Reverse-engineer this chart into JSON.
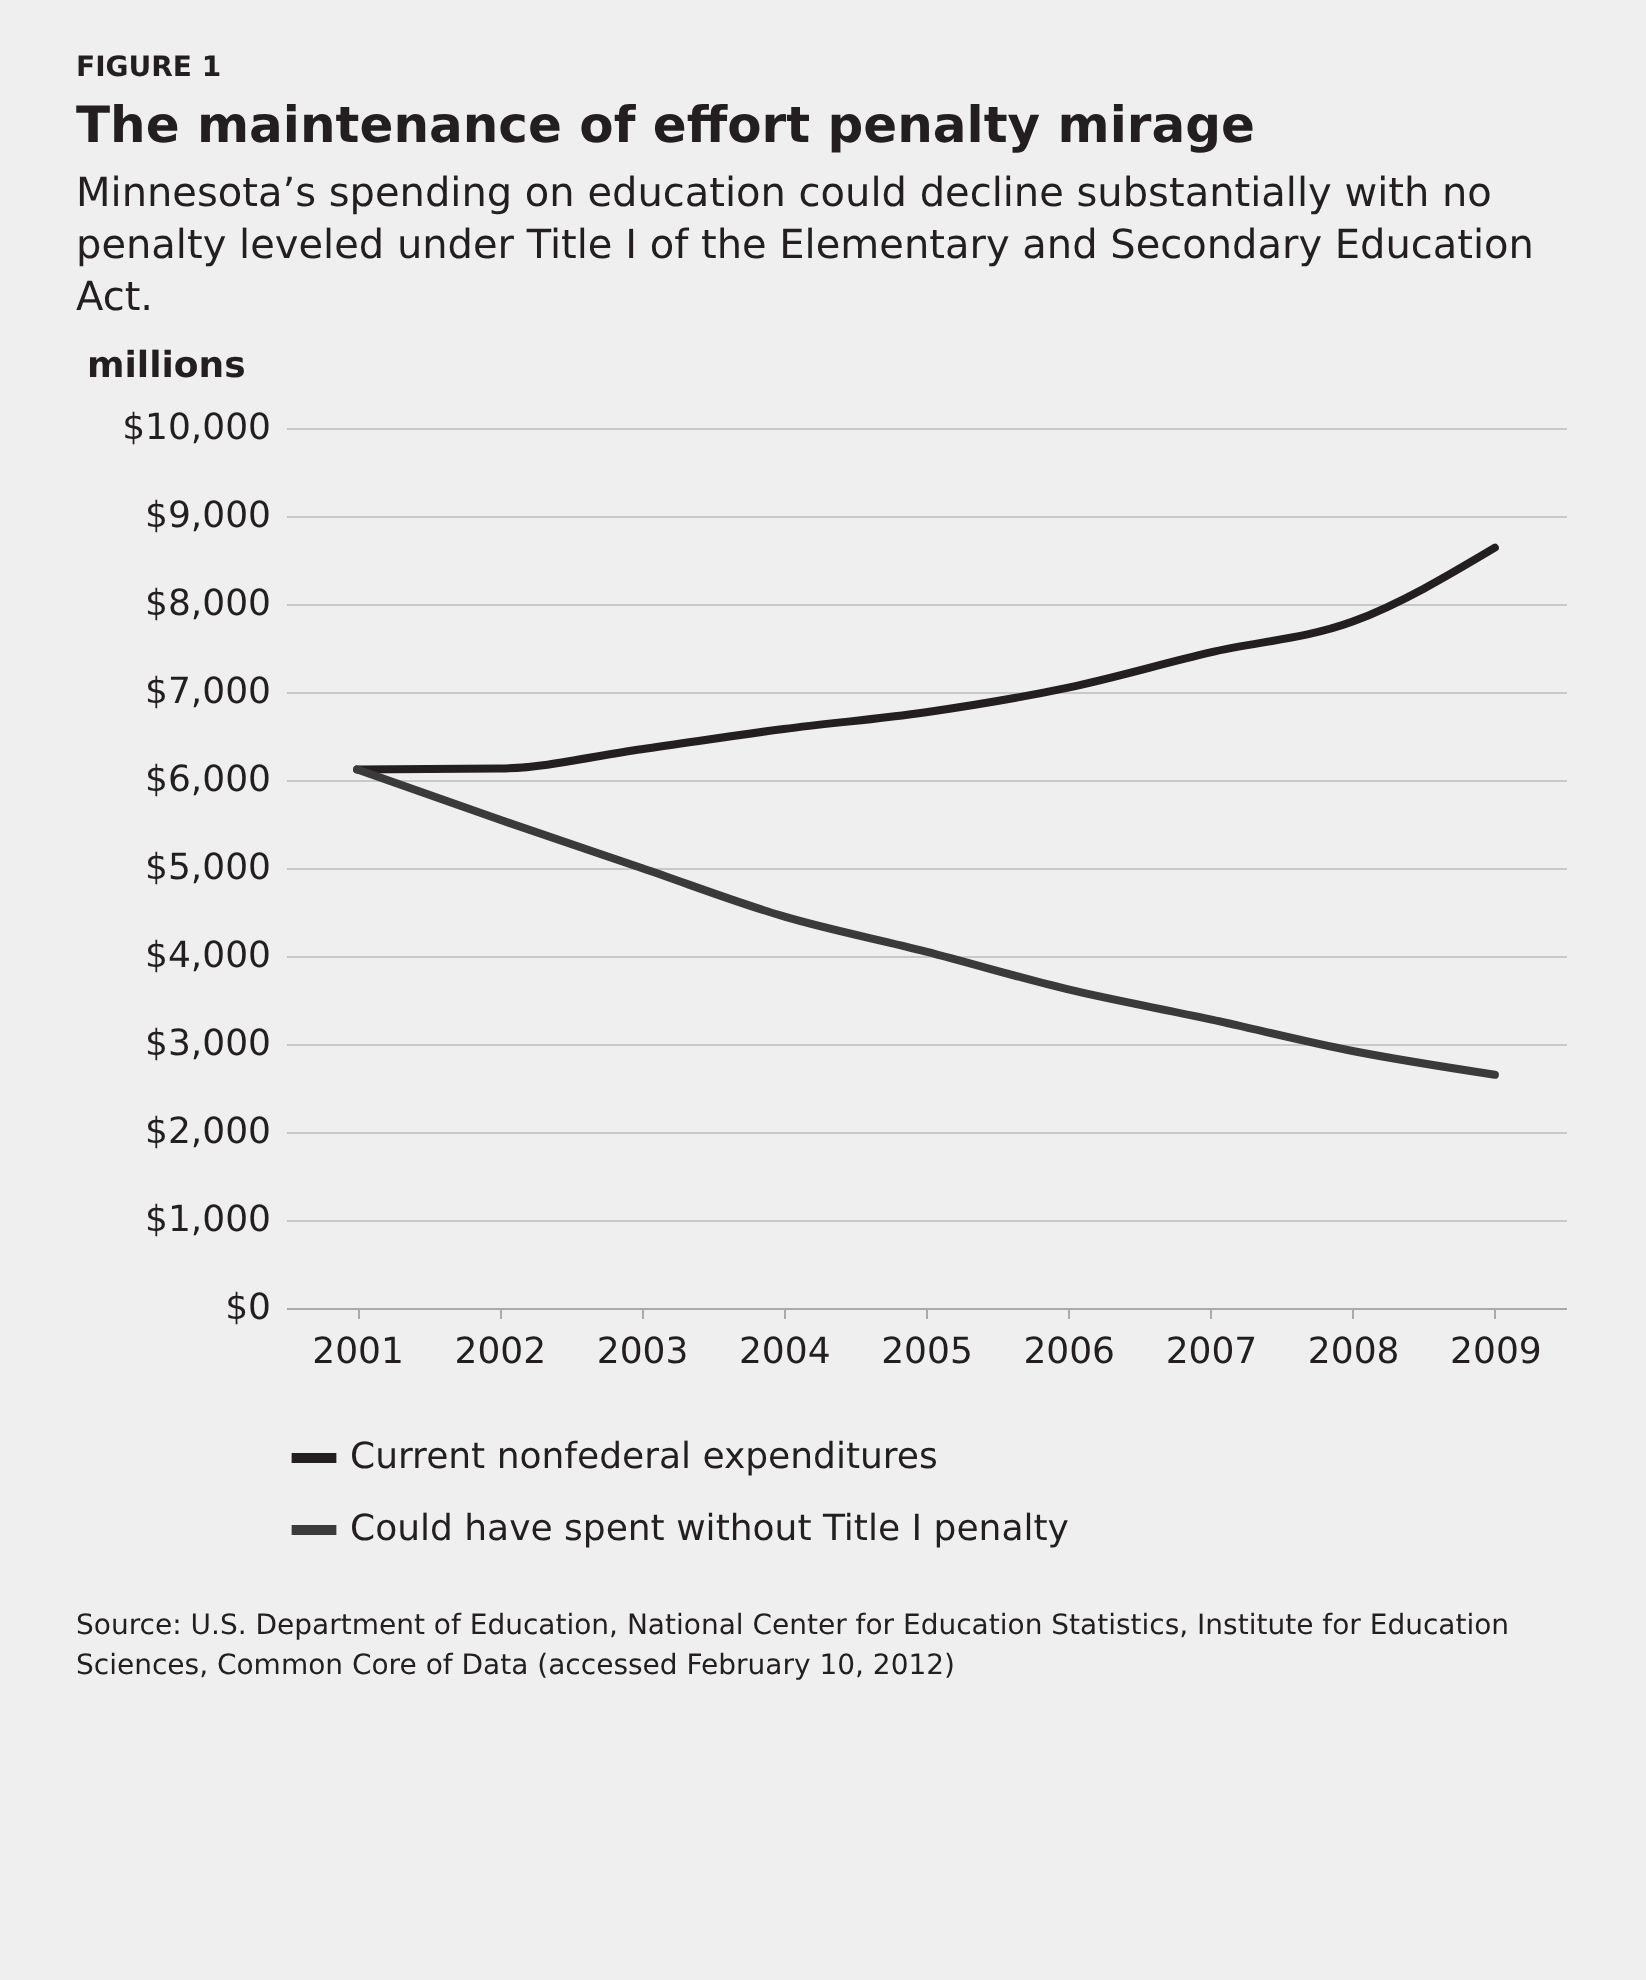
{
  "chart_data": {
    "type": "line",
    "title": "The maintenance of effort penalty mirage",
    "subtitle": "Minnesota’s spending on education could decline substantially with no penalty leveled under Title I of the Elementary and Secondary Education Act.",
    "ylabel": "millions",
    "annotations": [
      "FIGURE 1",
      "Source: U.S. Department of Education, National Center for Education Statistics, Institute for Education Sciences, Common Core of Data (accessed February 10, 2012)"
    ],
    "categories": [
      "2001",
      "2002",
      "2003",
      "2004",
      "2005",
      "2006",
      "2007",
      "2008",
      "2009"
    ],
    "series": [
      {
        "name": "Current nonfederal expenditures",
        "color": "#231f20",
        "values": [
          6120,
          6130,
          6350,
          6580,
          6770,
          7050,
          7450,
          7800,
          8640
        ]
      },
      {
        "name": "Could have spent without Title I penalty",
        "color": "#3a3a3a",
        "values": [
          6120,
          5550,
          5000,
          4450,
          4050,
          3620,
          3280,
          2920,
          2650
        ]
      }
    ],
    "ylim": [
      0,
      10000
    ],
    "yticks": [
      {
        "value": 0,
        "label": "$0"
      },
      {
        "value": 1000,
        "label": "$1,000"
      },
      {
        "value": 2000,
        "label": "$2,000"
      },
      {
        "value": 3000,
        "label": "$3,000"
      },
      {
        "value": 4000,
        "label": "$4,000"
      },
      {
        "value": 5000,
        "label": "$5,000"
      },
      {
        "value": 6000,
        "label": "$6,000"
      },
      {
        "value": 7000,
        "label": "$7,000"
      },
      {
        "value": 8000,
        "label": "$8,000"
      },
      {
        "value": 9000,
        "label": "$9,000"
      },
      {
        "value": 10000,
        "label": "$10,000"
      }
    ],
    "grid": "y",
    "legend": "bottom",
    "marker": "none",
    "line_style": "solid"
  }
}
